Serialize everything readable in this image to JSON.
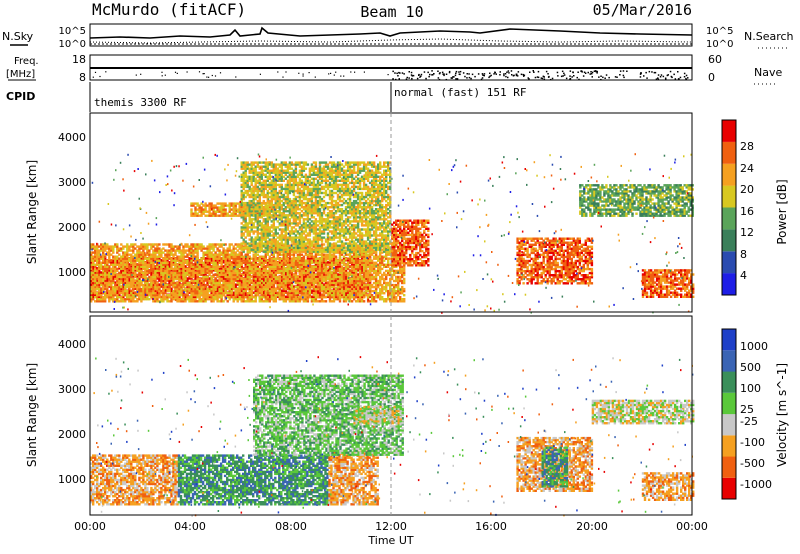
{
  "header": {
    "station": "McMurdo (fitACF)",
    "beam": "Beam 10",
    "date": "05/Mar/2016"
  },
  "strip_labels": {
    "nsky": "N.Sky",
    "nsearch": "N.Search",
    "freq_a": "Freq.",
    "freq_b": "[MHz]",
    "nave": "Nave",
    "cpid": "CPID",
    "left_ticks_top": [
      "10^5",
      "10^0"
    ],
    "right_ticks_top": [
      "10^5",
      "10^0"
    ],
    "left_ticks_freq": [
      "18",
      "8"
    ],
    "right_ticks_nave": [
      "60",
      "0"
    ]
  },
  "cpid_modes": [
    {
      "label": "themis 3300 RF",
      "start_hour": 0,
      "end_hour": 12
    },
    {
      "label": "normal (fast) 151 RF",
      "start_hour": 12,
      "end_hour": 24
    }
  ],
  "colors": {
    "power_scale": [
      "#1e1ee6",
      "#2a4bb0",
      "#3a7f5a",
      "#5aa45a",
      "#d8c820",
      "#f5a020",
      "#f06010",
      "#e80000"
    ],
    "velocity_scale": [
      "#e80000",
      "#f06010",
      "#f5a020",
      "#c8c8c8",
      "#5ac83a",
      "#3a8f5a",
      "#3a64b4",
      "#1e40c8"
    ]
  },
  "chart_data": [
    {
      "type": "heatmap",
      "name": "power",
      "xlabel": "",
      "ylabel": "Slant Range [km]",
      "colorbar_label": "Power [dB]",
      "colorbar_ticks": [
        "4",
        "8",
        "12",
        "16",
        "20",
        "24",
        "28"
      ],
      "x_ticks": [
        "00:00",
        "04:00",
        "08:00",
        "12:00",
        "16:00",
        "20:00",
        "00:00"
      ],
      "y_ticks": [
        "1000",
        "2000",
        "3000",
        "4000"
      ],
      "xlim_hours": [
        0,
        24
      ],
      "ylim_km": [
        180,
        4600
      ],
      "regions": [
        {
          "start_hour": 0,
          "end_hour": 11.2,
          "range_min_km": 500,
          "range_max_km": 1400,
          "level": 7
        },
        {
          "start_hour": 0,
          "end_hour": 12.5,
          "range_min_km": 400,
          "range_max_km": 1700,
          "level": 5
        },
        {
          "start_hour": 4,
          "end_hour": 7.5,
          "range_min_km": 2300,
          "range_max_km": 2600,
          "level": 5
        },
        {
          "start_hour": 6,
          "end_hour": 12,
          "range_min_km": 1500,
          "range_max_km": 3500,
          "level": 4
        },
        {
          "start_hour": 12,
          "end_hour": 13.5,
          "range_min_km": 1200,
          "range_max_km": 2200,
          "level": 6
        },
        {
          "start_hour": 17,
          "end_hour": 20,
          "range_min_km": 800,
          "range_max_km": 1800,
          "level": 6
        },
        {
          "start_hour": 19.5,
          "end_hour": 24,
          "range_min_km": 2300,
          "range_max_km": 3000,
          "level": 3
        },
        {
          "start_hour": 22,
          "end_hour": 24,
          "range_min_km": 500,
          "range_max_km": 1100,
          "level": 6
        }
      ]
    },
    {
      "type": "heatmap",
      "name": "velocity",
      "xlabel": "Time UT",
      "ylabel": "Slant Range [km]",
      "colorbar_label": "Velocity [m s^-1]",
      "colorbar_ticks": [
        "-1000",
        "-500",
        "-100",
        "-25",
        "25",
        "100",
        "500",
        "1000"
      ],
      "x_ticks": [
        "00:00",
        "04:00",
        "08:00",
        "12:00",
        "16:00",
        "20:00",
        "00:00"
      ],
      "y_ticks": [
        "1000",
        "2000",
        "3000",
        "4000"
      ],
      "xlim_hours": [
        0,
        24
      ],
      "ylim_km": [
        180,
        4600
      ],
      "regions": [
        {
          "start_hour": 0,
          "end_hour": 3.5,
          "range_min_km": 400,
          "range_max_km": 1500,
          "level": 2
        },
        {
          "start_hour": 3.5,
          "end_hour": 9.5,
          "range_min_km": 400,
          "range_max_km": 1500,
          "level": 5
        },
        {
          "start_hour": 9.5,
          "end_hour": 11.5,
          "range_min_km": 400,
          "range_max_km": 1600,
          "level": 2
        },
        {
          "start_hour": 6.5,
          "end_hour": 12.5,
          "range_min_km": 1500,
          "range_max_km": 3300,
          "level": 4
        },
        {
          "start_hour": 10.5,
          "end_hour": 12.5,
          "range_min_km": 2200,
          "range_max_km": 2600,
          "level": 3
        },
        {
          "start_hour": 17,
          "end_hour": 20,
          "range_min_km": 700,
          "range_max_km": 1900,
          "level": 2
        },
        {
          "start_hour": 18,
          "end_hour": 19,
          "range_min_km": 800,
          "range_max_km": 1700,
          "level": 5
        },
        {
          "start_hour": 20,
          "end_hour": 24,
          "range_min_km": 2200,
          "range_max_km": 2700,
          "level": 3
        },
        {
          "start_hour": 22,
          "end_hour": 24,
          "range_min_km": 500,
          "range_max_km": 1100,
          "level": 2
        }
      ]
    }
  ]
}
